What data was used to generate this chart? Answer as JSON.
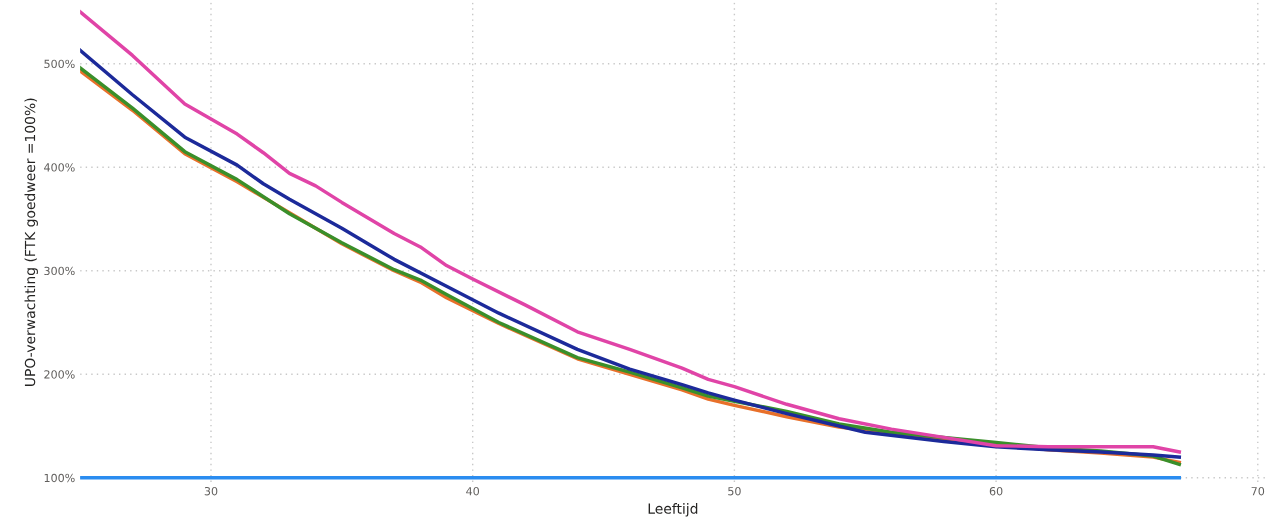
{
  "chart_data": {
    "type": "line",
    "xlabel": "Leeftijd",
    "ylabel": "UPO-verwachting (FTK goedweer =100%)",
    "xlim": [
      25,
      70.3
    ],
    "ylim": [
      96,
      559
    ],
    "xticks": [
      30,
      40,
      50,
      60,
      70
    ],
    "yticks": [
      {
        "value": 100,
        "label": "100%"
      },
      {
        "value": 200,
        "label": "200%"
      },
      {
        "value": 300,
        "label": "300%"
      },
      {
        "value": 400,
        "label": "400%"
      },
      {
        "value": 500,
        "label": "500%"
      }
    ],
    "grid": true,
    "line_style": "solid",
    "marker": "none",
    "series": [
      {
        "color": "#2a8cf0",
        "x": [
          25,
          67
        ],
        "values": [
          100,
          100
        ]
      },
      {
        "color": "#e8702a",
        "x": [
          25,
          27,
          29,
          31,
          33,
          35,
          37,
          38,
          39,
          41,
          44,
          46,
          48,
          49,
          50,
          52,
          54,
          56,
          58,
          60,
          62,
          64,
          66,
          67
        ],
        "values": [
          493,
          455,
          413,
          386,
          356,
          326,
          300,
          289,
          274,
          249,
          215,
          200,
          185,
          176,
          170,
          159,
          149,
          143,
          136,
          132,
          127,
          124,
          120,
          115
        ]
      },
      {
        "color": "#3a8f2a",
        "x": [
          25,
          27,
          29,
          31,
          33,
          35,
          37,
          38,
          39,
          41,
          44,
          46,
          48,
          49,
          50,
          52,
          54,
          56,
          58,
          60,
          62,
          64,
          66,
          67
        ],
        "values": [
          496,
          457,
          415,
          388,
          355,
          327,
          301,
          291,
          277,
          250,
          216,
          202,
          187,
          179,
          174,
          164,
          152,
          144,
          139,
          134,
          129,
          126,
          121,
          113
        ]
      },
      {
        "color": "#1c2a9a",
        "x": [
          25,
          27,
          29,
          31,
          32,
          33,
          35,
          37,
          39,
          41,
          44,
          46,
          48,
          49,
          50,
          52,
          55,
          58,
          60,
          62,
          64,
          66,
          67
        ],
        "values": [
          513,
          470,
          429,
          402,
          384,
          369,
          341,
          311,
          285,
          259,
          224,
          205,
          190,
          182,
          175,
          162,
          144,
          135,
          130,
          127,
          125,
          122,
          120
        ]
      },
      {
        "color": "#e044a7",
        "x": [
          25,
          27,
          29,
          31,
          32,
          33,
          34,
          35,
          37,
          38,
          39,
          40,
          42,
          44,
          46,
          48,
          49,
          50,
          52,
          54,
          56,
          58,
          60,
          62,
          64,
          66,
          67
        ],
        "values": [
          550,
          508,
          461,
          432,
          414,
          394,
          382,
          366,
          336,
          323,
          305,
          292,
          267,
          241,
          224,
          206,
          195,
          188,
          171,
          157,
          147,
          139,
          131,
          130,
          130,
          130,
          125
        ]
      }
    ]
  }
}
